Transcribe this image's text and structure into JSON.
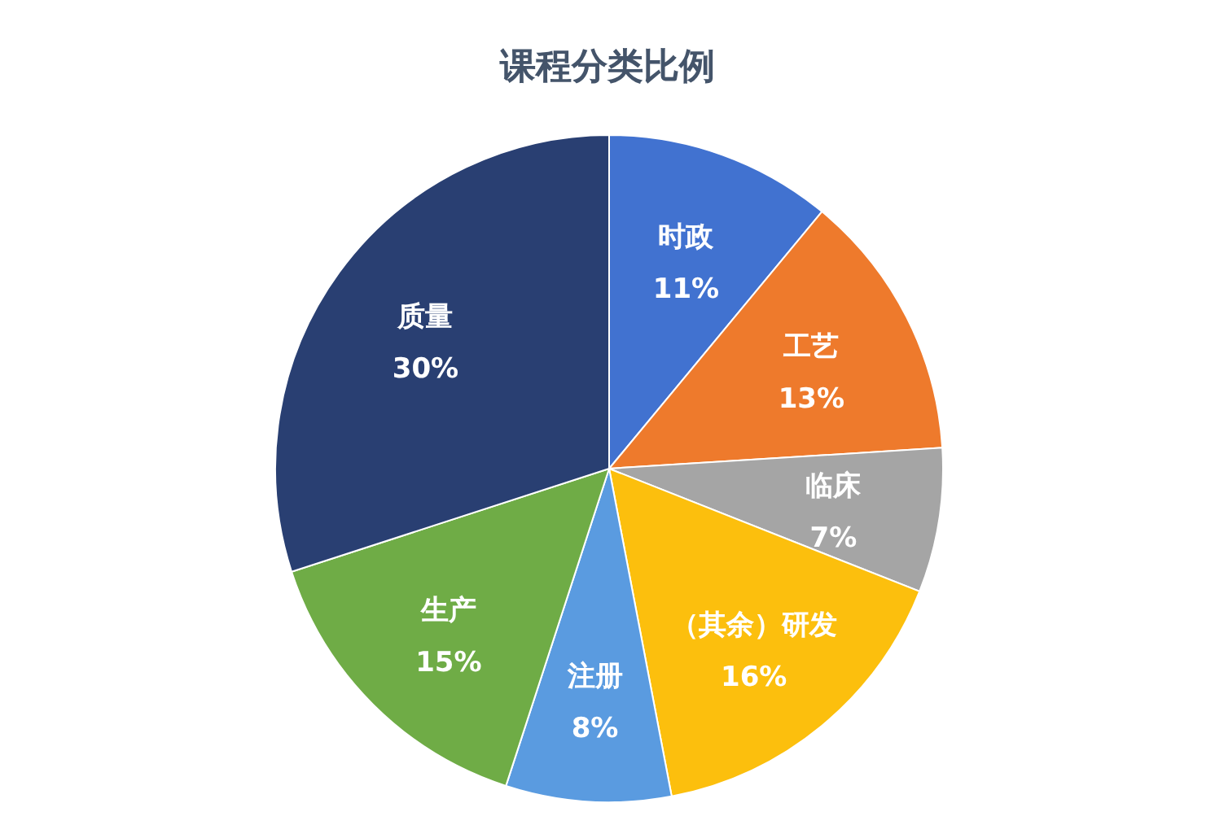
{
  "chart_data": {
    "type": "pie",
    "title": "课程分类比例",
    "categories": [
      "时政",
      "工艺",
      "临床",
      "（其余）研发",
      "注册",
      "生产",
      "质量"
    ],
    "values": [
      11,
      13,
      7,
      16,
      8,
      15,
      30
    ],
    "colors": [
      "#4172d0",
      "#ee7a2c",
      "#a5a5a5",
      "#fcbf0d",
      "#5a9be0",
      "#6fac46",
      "#293f72"
    ],
    "value_labels": [
      "11%",
      "13%",
      "7%",
      "16%",
      "8%",
      "15%",
      "30%"
    ]
  }
}
